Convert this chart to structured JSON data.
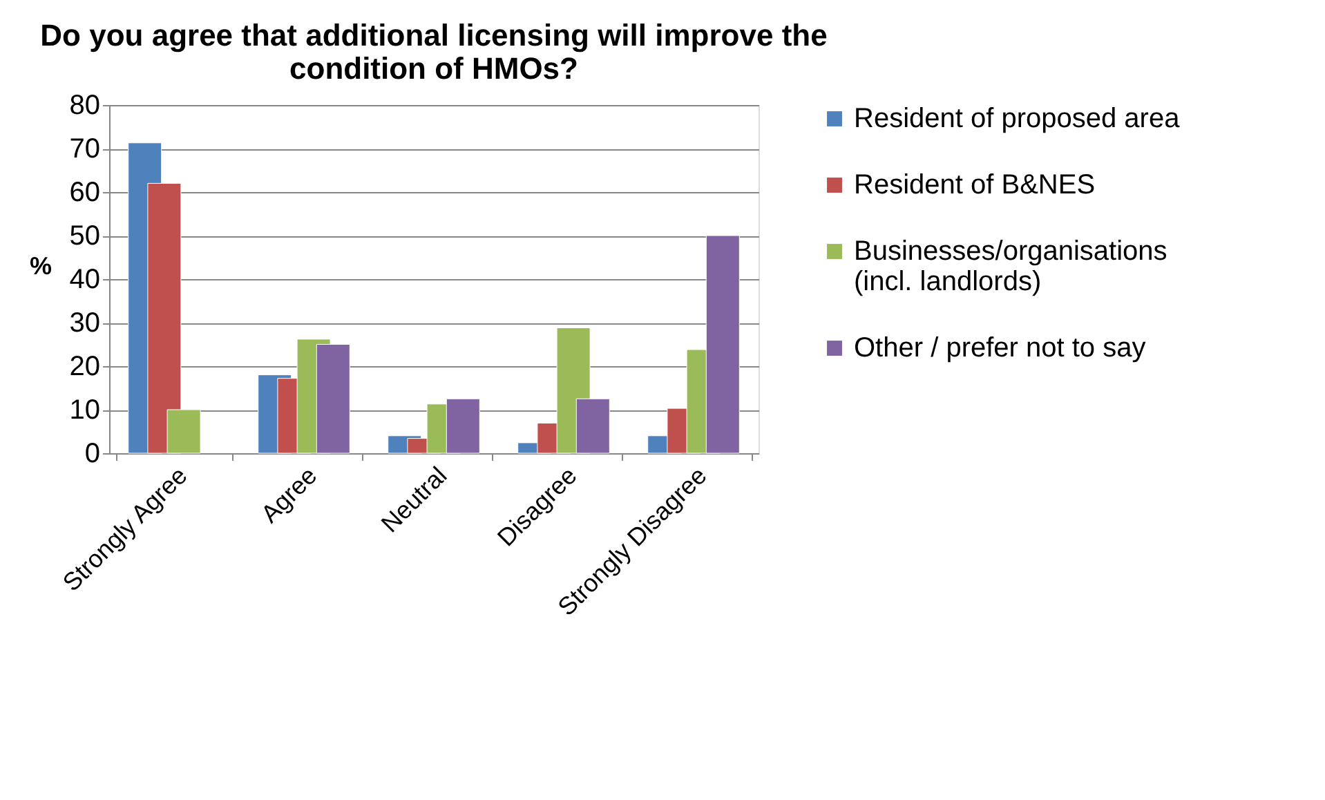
{
  "chart_data": {
    "type": "bar",
    "title": "Do you agree that additional licensing will improve the condition of HMOs?",
    "ylabel": "%",
    "categories": [
      "Strongly Agree",
      "Agree",
      "Neutral",
      "Disagree",
      "Strongly Disagree"
    ],
    "series": [
      {
        "name": "Resident of proposed area",
        "color": "#4f81bd",
        "values": [
          71.3,
          18,
          4,
          2.4,
          4
        ]
      },
      {
        "name": "Resident of B&NES",
        "color": "#c0504d",
        "values": [
          62,
          17.2,
          3.4,
          6.9,
          10.3
        ]
      },
      {
        "name": "Businesses/organisations (incl. landlords)",
        "color": "#9bbb59",
        "values": [
          10,
          26.2,
          11.3,
          28.8,
          23.8
        ]
      },
      {
        "name": "Other / prefer not to say",
        "color": "#8064a2",
        "values": [
          null,
          25,
          12.5,
          12.5,
          50
        ]
      }
    ],
    "ylim": [
      0,
      80
    ],
    "yticks": [
      0,
      10,
      20,
      30,
      40,
      50,
      60,
      70,
      80
    ],
    "grid": "y",
    "legend": "right"
  }
}
